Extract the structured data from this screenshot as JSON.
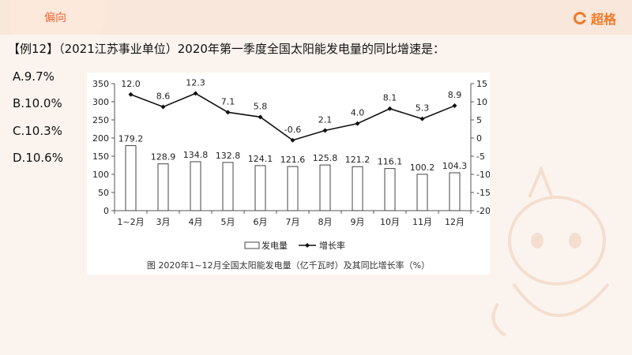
{
  "header": {
    "tab_label": "偏向",
    "brand_name": "超格",
    "brand_icon": "brand-logo-icon"
  },
  "question": {
    "text": "【例12】（2021江苏事业单位）2020年第一季度全国太阳能发电量的同比增速是：",
    "options": [
      "A.9.7%",
      "B.10.0%",
      "C.10.3%",
      "D.10.6%"
    ]
  },
  "colors": {
    "accent": "#f07a2a",
    "tab_text": "#e8693a",
    "topbar": "#f8e7da",
    "background": "#fbf4ee"
  },
  "chart_data": {
    "type": "bar",
    "categories": [
      "1~2月",
      "3月",
      "4月",
      "5月",
      "6月",
      "7月",
      "8月",
      "9月",
      "10月",
      "11月",
      "12月"
    ],
    "series": [
      {
        "name": "发电量",
        "type": "bar",
        "axis": "left",
        "values": [
          179.2,
          128.9,
          134.8,
          132.8,
          124.1,
          121.6,
          125.8,
          121.2,
          116.1,
          100.2,
          104.3
        ]
      },
      {
        "name": "增长率",
        "type": "line",
        "axis": "right",
        "values": [
          12.0,
          8.6,
          12.3,
          7.1,
          5.8,
          -0.6,
          2.1,
          4.0,
          8.1,
          5.3,
          8.9
        ]
      }
    ],
    "left_ticks": [
      "350",
      "300",
      "250",
      "200",
      "150",
      "100",
      "50",
      "0"
    ],
    "right_ticks": [
      "15",
      "10",
      "5",
      "0",
      "-5",
      "-10",
      "-15",
      "-20"
    ],
    "ylim_left": [
      0,
      350
    ],
    "ylim_right": [
      -20,
      15
    ],
    "bar_labels": [
      "179.2",
      "128.9",
      "134.8",
      "132.8",
      "124.1",
      "121.6",
      "125.8",
      "121.2",
      "116.1",
      "100.2",
      "104.3"
    ],
    "line_labels": [
      "12.0",
      "8.6",
      "12.3",
      "7.1",
      "5.8",
      "-0.6",
      "2.1",
      "4.0",
      "8.1",
      "5.3",
      "8.9"
    ],
    "caption": "图  2020年1~12月全国太阳能发电量（亿千瓦时）及其同比增长率（%）",
    "legend": {
      "bar_label": "发电量",
      "line_label": "增长率",
      "placement": "bottom"
    },
    "grid": false
  }
}
